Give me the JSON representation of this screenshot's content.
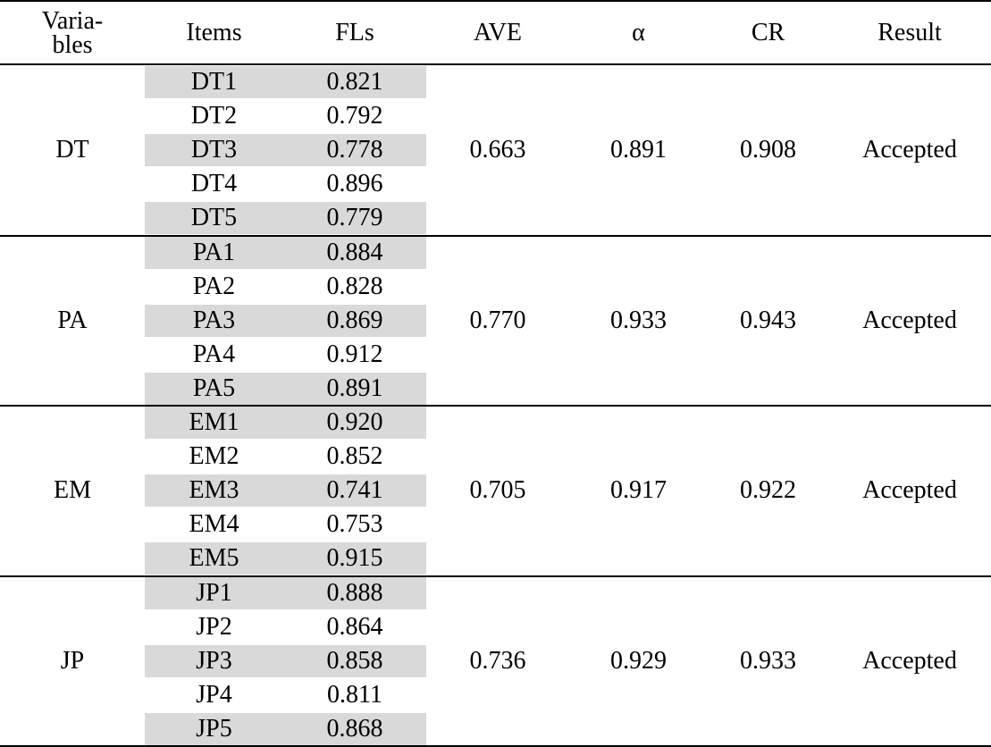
{
  "header": {
    "variables_line1": "Varia-",
    "variables_line2": "bles",
    "items": "Items",
    "fls": "FLs",
    "ave": "AVE",
    "alpha": "α",
    "cr": "CR",
    "result": "Result"
  },
  "groups": [
    {
      "variable": "DT",
      "ave": "0.663",
      "alpha": "0.891",
      "cr": "0.908",
      "result": "Accepted",
      "rows": [
        {
          "item": "DT1",
          "fl": "0.821"
        },
        {
          "item": "DT2",
          "fl": "0.792"
        },
        {
          "item": "DT3",
          "fl": "0.778"
        },
        {
          "item": "DT4",
          "fl": "0.896"
        },
        {
          "item": "DT5",
          "fl": "0.779"
        }
      ]
    },
    {
      "variable": "PA",
      "ave": "0.770",
      "alpha": "0.933",
      "cr": "0.943",
      "result": "Accepted",
      "rows": [
        {
          "item": "PA1",
          "fl": "0.884"
        },
        {
          "item": "PA2",
          "fl": "0.828"
        },
        {
          "item": "PA3",
          "fl": "0.869"
        },
        {
          "item": "PA4",
          "fl": "0.912"
        },
        {
          "item": "PA5",
          "fl": "0.891"
        }
      ]
    },
    {
      "variable": "EM",
      "ave": "0.705",
      "alpha": "0.917",
      "cr": "0.922",
      "result": "Accepted",
      "rows": [
        {
          "item": "EM1",
          "fl": "0.920"
        },
        {
          "item": "EM2",
          "fl": "0.852"
        },
        {
          "item": "EM3",
          "fl": "0.741"
        },
        {
          "item": "EM4",
          "fl": "0.753"
        },
        {
          "item": "EM5",
          "fl": "0.915"
        }
      ]
    },
    {
      "variable": "JP",
      "ave": "0.736",
      "alpha": "0.929",
      "cr": "0.933",
      "result": "Accepted",
      "rows": [
        {
          "item": "JP1",
          "fl": "0.888"
        },
        {
          "item": "JP2",
          "fl": "0.864"
        },
        {
          "item": "JP3",
          "fl": "0.858"
        },
        {
          "item": "JP4",
          "fl": "0.811"
        },
        {
          "item": "JP5",
          "fl": "0.868"
        }
      ]
    }
  ]
}
